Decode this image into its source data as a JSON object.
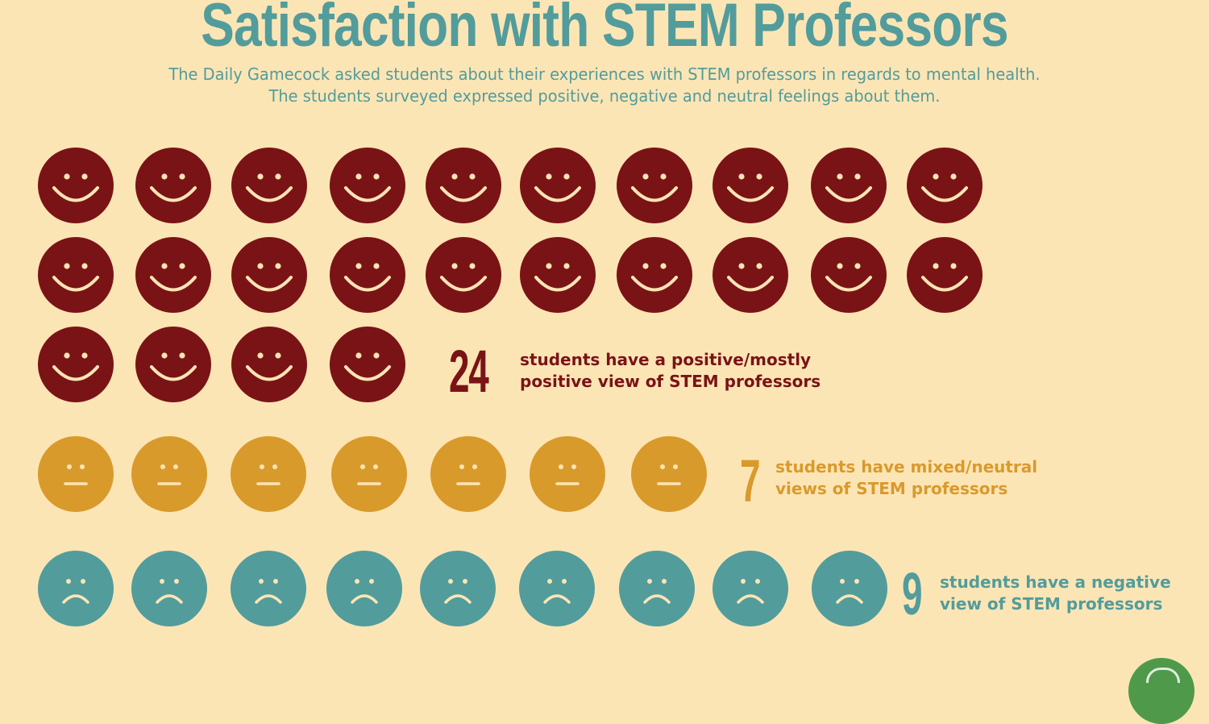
{
  "header": {
    "title": "Satisfaction with STEM Professors",
    "subtitle_line1": "The Daily Gamecock asked students about their experiences with STEM professors in regards to mental health.",
    "subtitle_line2": "The students surveyed expressed positive, negative and neutral feelings about them."
  },
  "colors": {
    "background": "#fce5b5",
    "positive": "#7a1316",
    "neutral": "#d99a2c",
    "negative": "#529c9c",
    "face_feature": "#fce5b5"
  },
  "chart_data": {
    "type": "pictograph",
    "title": "Satisfaction with STEM Professors",
    "series": [
      {
        "name": "positive",
        "count": 24,
        "icon": "smiley-face-icon",
        "color": "#7a1316",
        "number_label": "24",
        "label_line1": "students have a positive/mostly",
        "label_line2": "positive view of STEM professors"
      },
      {
        "name": "neutral",
        "count": 7,
        "icon": "neutral-face-icon",
        "color": "#d99a2c",
        "number_label": "7",
        "label_line1": "students have mixed/neutral",
        "label_line2": "views of STEM professors"
      },
      {
        "name": "negative",
        "count": 9,
        "icon": "frowning-face-icon",
        "color": "#529c9c",
        "number_label": "9",
        "label_line1": "students have a negative",
        "label_line2": "view of STEM professors"
      }
    ]
  },
  "logo": {
    "icon": "daily-gamecock-logo-icon"
  }
}
